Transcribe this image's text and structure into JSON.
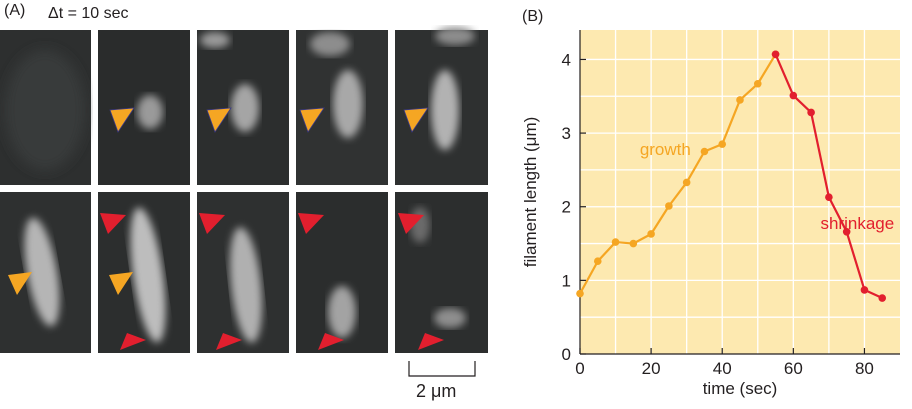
{
  "panel_a": {
    "label": "(A)",
    "time_step_label": "Δt = 10 sec",
    "scale_bar_label": "2 μm",
    "row_count": 2,
    "column_count": 5,
    "marker_colors": {
      "growth_end": "#f5a623",
      "shrinkage_end": "#e21f2e"
    }
  },
  "chart_data": {
    "type": "line",
    "panel_label": "(B)",
    "xlabel": "time (sec)",
    "ylabel": "filament length (μm)",
    "xlim": [
      0,
      90
    ],
    "ylim": [
      0,
      4.4
    ],
    "x_ticks": [
      0,
      20,
      40,
      60,
      80
    ],
    "y_ticks": [
      0,
      1,
      2,
      3,
      4
    ],
    "grid": true,
    "background_color": "#fde9b0",
    "grid_color": "#ffffff",
    "series": [
      {
        "name": "growth",
        "color": "#f5a623",
        "x": [
          0,
          5,
          10,
          15,
          20,
          25,
          30,
          35,
          40,
          45,
          50,
          55
        ],
        "y": [
          0.82,
          1.26,
          1.52,
          1.5,
          1.63,
          2.01,
          2.33,
          2.75,
          2.85,
          3.45,
          3.67,
          4.07
        ]
      },
      {
        "name": "shrinkage",
        "color": "#e21f2e",
        "x": [
          55,
          60,
          65,
          70,
          75,
          80,
          85
        ],
        "y": [
          4.07,
          3.51,
          3.28,
          2.13,
          1.66,
          0.87,
          0.76
        ]
      }
    ],
    "annotations": [
      {
        "text": "growth",
        "color": "#f5a623",
        "x": 24,
        "y": 2.7
      },
      {
        "text": "shrinkage",
        "color": "#e21f2e",
        "x": 78,
        "y": 1.7
      }
    ]
  }
}
